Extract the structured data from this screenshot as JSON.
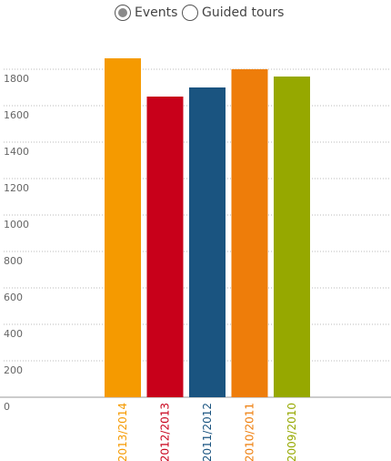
{
  "toggle": {
    "options": [
      {
        "label": "Events",
        "selected": true
      },
      {
        "label": "Guided tours",
        "selected": false
      }
    ]
  },
  "chart_data": {
    "type": "bar",
    "categories": [
      "2013/2014",
      "2012/2013",
      "2011/2012",
      "2010/2011",
      "2009/2010"
    ],
    "values": [
      1860,
      1650,
      1700,
      1800,
      1760
    ],
    "colors": [
      "#f59a00",
      "#c8001a",
      "#1a5480",
      "#ee7d0a",
      "#96a800"
    ],
    "yticks": [
      0,
      200,
      400,
      600,
      800,
      1000,
      1200,
      1400,
      1600,
      1800
    ],
    "ylim": [
      0,
      1800
    ],
    "grid": true,
    "grid_style": "dotted",
    "title": "",
    "xlabel": "",
    "ylabel": ""
  }
}
